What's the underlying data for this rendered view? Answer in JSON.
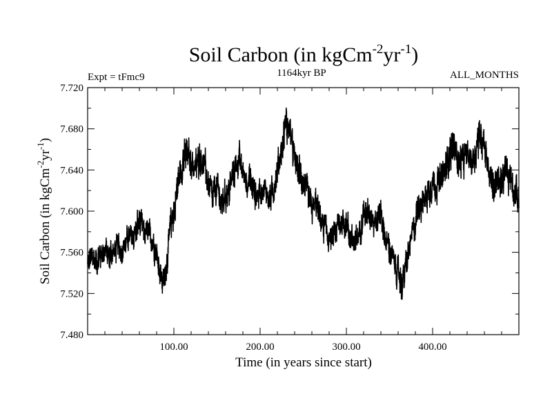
{
  "chart_data": {
    "type": "line",
    "title": "Soil Carbon (in kgCm",
    "title_units": {
      "sup1": "-2",
      "mid": "yr",
      "sup2": "-1",
      "end": ")"
    },
    "subtitle": "1164kyr BP",
    "left_header": "Expt = tFmc9",
    "right_header": "ALL_MONTHS",
    "xlabel": "Time (in years since start)",
    "ylabel": "Soil Carbon (in kgCm",
    "ylabel_units": {
      "sup1": "-2",
      "mid": "yr",
      "sup2": "-1",
      "end": ")"
    },
    "xlim": [
      0,
      500
    ],
    "ylim": [
      7.48,
      7.72
    ],
    "x_ticks": [
      {
        "value": 100,
        "label": "100.00"
      },
      {
        "value": 200,
        "label": "200.00"
      },
      {
        "value": 300,
        "label": "300.00"
      },
      {
        "value": 400,
        "label": "400.00"
      }
    ],
    "y_ticks": [
      {
        "value": 7.48,
        "label": "7.480"
      },
      {
        "value": 7.52,
        "label": "7.520"
      },
      {
        "value": 7.56,
        "label": "7.560"
      },
      {
        "value": 7.6,
        "label": "7.600"
      },
      {
        "value": 7.64,
        "label": "7.640"
      },
      {
        "value": 7.68,
        "label": "7.680"
      },
      {
        "value": 7.72,
        "label": "7.720"
      }
    ],
    "series": [
      {
        "name": "Soil Carbon",
        "color": "#000000",
        "x": [
          0,
          5,
          10,
          15,
          20,
          25,
          30,
          35,
          40,
          45,
          50,
          55,
          60,
          65,
          70,
          75,
          80,
          85,
          88,
          92,
          96,
          100,
          105,
          110,
          115,
          120,
          125,
          130,
          135,
          140,
          145,
          150,
          155,
          160,
          165,
          170,
          175,
          180,
          185,
          190,
          195,
          200,
          205,
          210,
          215,
          220,
          225,
          230,
          235,
          240,
          245,
          250,
          255,
          260,
          265,
          270,
          275,
          280,
          285,
          290,
          295,
          300,
          305,
          310,
          315,
          320,
          325,
          330,
          335,
          340,
          345,
          350,
          355,
          360,
          365,
          370,
          375,
          380,
          385,
          390,
          395,
          400,
          405,
          410,
          415,
          420,
          425,
          430,
          435,
          440,
          445,
          450,
          455,
          460,
          465,
          470,
          475,
          480,
          485,
          490,
          495,
          500
        ],
        "mean": [
          7.548,
          7.556,
          7.55,
          7.558,
          7.562,
          7.557,
          7.56,
          7.566,
          7.562,
          7.57,
          7.574,
          7.578,
          7.59,
          7.58,
          7.578,
          7.572,
          7.56,
          7.538,
          7.53,
          7.552,
          7.584,
          7.6,
          7.628,
          7.648,
          7.655,
          7.648,
          7.64,
          7.652,
          7.646,
          7.625,
          7.612,
          7.624,
          7.606,
          7.616,
          7.622,
          7.64,
          7.65,
          7.638,
          7.63,
          7.626,
          7.615,
          7.62,
          7.624,
          7.612,
          7.618,
          7.64,
          7.66,
          7.688,
          7.675,
          7.65,
          7.638,
          7.63,
          7.616,
          7.602,
          7.608,
          7.592,
          7.585,
          7.572,
          7.576,
          7.585,
          7.59,
          7.588,
          7.576,
          7.566,
          7.58,
          7.6,
          7.596,
          7.598,
          7.59,
          7.602,
          7.572,
          7.564,
          7.55,
          7.538,
          7.53,
          7.548,
          7.572,
          7.59,
          7.608,
          7.61,
          7.62,
          7.628,
          7.625,
          7.63,
          7.64,
          7.66,
          7.666,
          7.646,
          7.65,
          7.654,
          7.648,
          7.66,
          7.676,
          7.668,
          7.64,
          7.622,
          7.63,
          7.625,
          7.64,
          7.636,
          7.622,
          7.608
        ],
        "amplitude": [
          0.018,
          0.02,
          0.022,
          0.02,
          0.018,
          0.02,
          0.018,
          0.02,
          0.018,
          0.018,
          0.02,
          0.02,
          0.022,
          0.02,
          0.02,
          0.018,
          0.02,
          0.022,
          0.022,
          0.02,
          0.022,
          0.024,
          0.026,
          0.026,
          0.024,
          0.022,
          0.024,
          0.026,
          0.024,
          0.024,
          0.022,
          0.022,
          0.02,
          0.022,
          0.022,
          0.022,
          0.022,
          0.02,
          0.022,
          0.022,
          0.02,
          0.02,
          0.02,
          0.02,
          0.02,
          0.022,
          0.024,
          0.026,
          0.024,
          0.022,
          0.022,
          0.02,
          0.02,
          0.022,
          0.02,
          0.02,
          0.022,
          0.02,
          0.02,
          0.02,
          0.02,
          0.02,
          0.02,
          0.022,
          0.02,
          0.02,
          0.02,
          0.022,
          0.02,
          0.022,
          0.02,
          0.022,
          0.02,
          0.022,
          0.022,
          0.022,
          0.02,
          0.022,
          0.022,
          0.022,
          0.022,
          0.024,
          0.024,
          0.024,
          0.024,
          0.026,
          0.026,
          0.024,
          0.024,
          0.024,
          0.024,
          0.026,
          0.028,
          0.026,
          0.024,
          0.024,
          0.024,
          0.024,
          0.024,
          0.024,
          0.022,
          0.022
        ]
      }
    ],
    "grid": false
  }
}
